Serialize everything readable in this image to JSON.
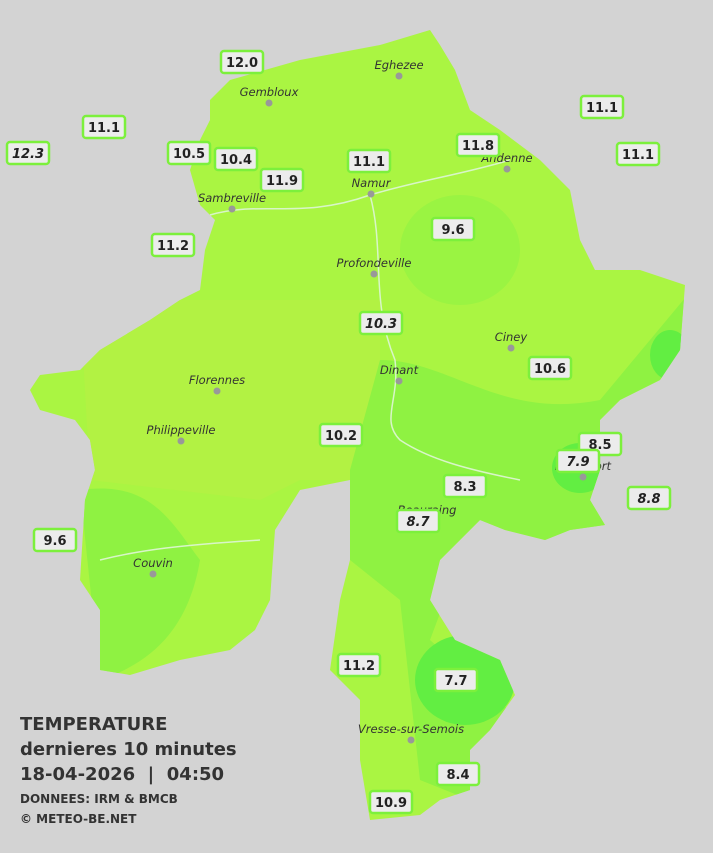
{
  "legend": {
    "title": "TEMPERATURE",
    "subtitle": "dernieres 10 minutes",
    "datetime": "18-04-2026  |  04:50",
    "source": "DONNEES: IRM & BMCB",
    "copyright": "© METEO-BE.NET"
  },
  "cities": [
    "Eghezee",
    "Gembloux",
    "Andenne",
    "Namur",
    "Sambreville",
    "Profondeville",
    "Ciney",
    "Dinant",
    "Florennes",
    "Philippeville",
    "Rochefort",
    "Beauraing",
    "Couvin",
    "Vresse-sur-Semois"
  ],
  "stations": [
    {
      "label": "12.0"
    },
    {
      "label": "11.1"
    },
    {
      "label": "12.3",
      "italic": true
    },
    {
      "label": "10.5"
    },
    {
      "label": "10.4"
    },
    {
      "label": "11.9"
    },
    {
      "label": "11.1"
    },
    {
      "label": "11.8"
    },
    {
      "label": "11.1"
    },
    {
      "label": "11.1"
    },
    {
      "label": "9.6"
    },
    {
      "label": "11.2"
    },
    {
      "label": "10.3",
      "italic": true
    },
    {
      "label": "10.6"
    },
    {
      "label": "10.2"
    },
    {
      "label": "8.5"
    },
    {
      "label": "7.9",
      "italic": true
    },
    {
      "label": "8.3"
    },
    {
      "label": "8.8",
      "italic": true
    },
    {
      "label": "8.7",
      "italic": true
    },
    {
      "label": "9.6"
    },
    {
      "label": "11.2"
    },
    {
      "label": "7.7"
    },
    {
      "label": "8.4"
    },
    {
      "label": "10.9"
    }
  ]
}
